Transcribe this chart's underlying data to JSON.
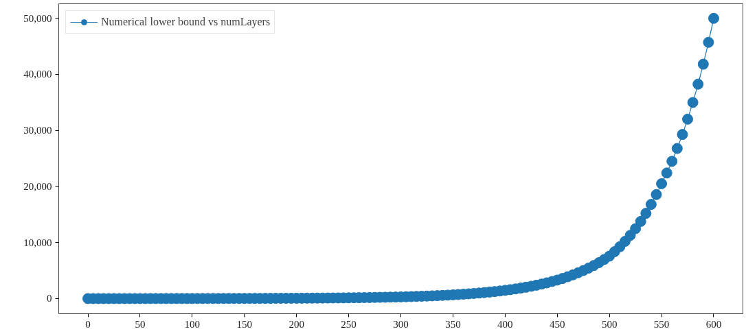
{
  "chart_data": {
    "type": "line",
    "x": [
      0,
      5,
      10,
      15,
      20,
      25,
      30,
      35,
      40,
      45,
      50,
      55,
      60,
      65,
      70,
      75,
      80,
      85,
      90,
      95,
      100,
      105,
      110,
      115,
      120,
      125,
      130,
      135,
      140,
      145,
      150,
      155,
      160,
      165,
      170,
      175,
      180,
      185,
      190,
      195,
      200,
      205,
      210,
      215,
      220,
      225,
      230,
      235,
      240,
      245,
      250,
      255,
      260,
      265,
      270,
      275,
      280,
      285,
      290,
      295,
      300,
      305,
      310,
      315,
      320,
      325,
      330,
      335,
      340,
      345,
      350,
      355,
      360,
      365,
      370,
      375,
      380,
      385,
      390,
      395,
      400,
      405,
      410,
      415,
      420,
      425,
      430,
      435,
      440,
      445,
      450,
      455,
      460,
      465,
      470,
      475,
      480,
      485,
      490,
      495,
      500,
      505,
      510,
      515,
      520,
      525,
      530,
      535,
      540,
      545,
      550,
      555,
      560,
      565,
      570,
      575,
      580,
      585,
      590,
      595,
      600
    ],
    "series": [
      {
        "name": "Numerical lower bound vs numLayers",
        "color": "#1f77b4",
        "values": [
          2,
          2,
          3,
          3,
          3,
          4,
          4,
          5,
          5,
          5,
          6,
          6,
          7,
          7,
          8,
          8,
          9,
          10,
          11,
          12,
          13,
          14,
          15,
          16,
          18,
          19,
          21,
          22,
          24,
          26,
          28,
          30,
          33,
          36,
          39,
          42,
          46,
          50,
          53,
          58,
          63,
          68,
          73,
          79,
          86,
          93,
          100,
          109,
          118,
          128,
          138,
          149,
          161,
          175,
          189,
          204,
          221,
          239,
          259,
          280,
          303,
          328,
          355,
          384,
          416,
          450,
          487,
          527,
          570,
          617,
          668,
          723,
          782,
          846,
          915,
          990,
          1072,
          1160,
          1255,
          1358,
          1470,
          1594,
          1728,
          1873,
          2031,
          2202,
          2387,
          2588,
          2806,
          3042,
          3300,
          3586,
          3897,
          4235,
          4602,
          5001,
          5435,
          5906,
          6418,
          6975,
          7580,
          8373,
          9249,
          10216,
          11285,
          12466,
          13770,
          15210,
          16801,
          18559,
          20500,
          22411,
          24500,
          26784,
          29280,
          32010,
          34994,
          38256,
          41822,
          45721,
          50000
        ]
      }
    ],
    "xlim": [
      -28,
      628
    ],
    "ylim": [
      -2700,
      52600
    ],
    "xticks": [
      0,
      50,
      100,
      150,
      200,
      250,
      300,
      350,
      400,
      450,
      500,
      550,
      600
    ],
    "yticks": [
      {
        "value": 0,
        "label": "0"
      },
      {
        "value": 10000,
        "label": "10,000"
      },
      {
        "value": 20000,
        "label": "20,000"
      },
      {
        "value": 30000,
        "label": "30,000"
      },
      {
        "value": 40000,
        "label": "40,000"
      },
      {
        "value": 50000,
        "label": "50,000"
      }
    ],
    "marker": "circle",
    "line_style": "solid",
    "legend": "top left",
    "grid": false
  }
}
